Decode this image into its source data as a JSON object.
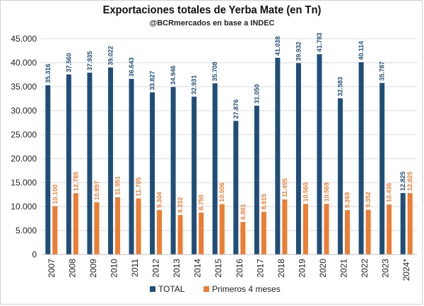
{
  "chart_data": {
    "type": "bar",
    "title": "Exportaciones totales de Yerba Mate (en Tn)",
    "subtitle": "@BCRmercados en base a INDEC",
    "categories": [
      "2007",
      "2008",
      "2009",
      "2010",
      "2011",
      "2012",
      "2013",
      "2014",
      "2015",
      "2016",
      "2017",
      "2018",
      "2019",
      "2020",
      "2021",
      "2022",
      "2023",
      "2024*"
    ],
    "series": [
      {
        "name": "TOTAL",
        "color": "#1f4e79",
        "values": [
          35316,
          37560,
          37935,
          39022,
          36643,
          33827,
          34946,
          32931,
          35708,
          27876,
          31050,
          41038,
          39932,
          41783,
          32583,
          40114,
          35787,
          12825
        ],
        "labels": [
          "35.316",
          "37.560",
          "37.935",
          "39.022",
          "36.643",
          "33.827",
          "34.946",
          "32.931",
          "35.708",
          "27.876",
          "31.050",
          "41.038",
          "39.932",
          "41.783",
          "32.583",
          "40.114",
          "35.787",
          "12.825"
        ]
      },
      {
        "name": "Primeros 4 meses",
        "color": "#ed7d31",
        "values": [
          10100,
          12785,
          10897,
          11951,
          11705,
          9304,
          8232,
          8750,
          10506,
          6801,
          8915,
          11495,
          10560,
          10569,
          9268,
          9352,
          10436,
          12825
        ],
        "labels": [
          "10.100",
          "12.785",
          "10.897",
          "11.951",
          "11.705",
          "9.304",
          "8.232",
          "8.750",
          "10.506",
          "6.801",
          "8.915",
          "11.495",
          "10.560",
          "10.569",
          "9.268",
          "9.352",
          "10.436",
          "12.825"
        ]
      }
    ],
    "ylim": [
      0,
      45000
    ],
    "yticks": [
      0,
      5000,
      10000,
      15000,
      20000,
      25000,
      30000,
      35000,
      40000,
      45000
    ],
    "ytick_labels": [
      "0",
      "5.000",
      "10.000",
      "15.000",
      "20.000",
      "25.000",
      "30.000",
      "35.000",
      "40.000",
      "45.000"
    ],
    "grid": true,
    "legend_position": "bottom"
  }
}
